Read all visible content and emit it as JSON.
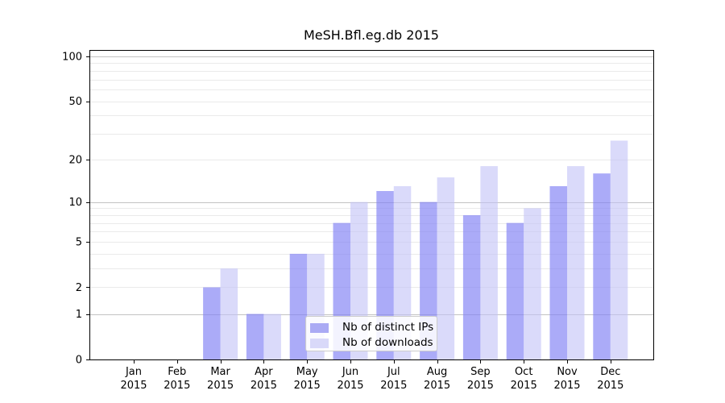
{
  "chart_data": {
    "type": "bar",
    "title": "MeSH.Bfl.eg.db 2015",
    "categories": [
      "Jan",
      "Feb",
      "Mar",
      "Apr",
      "May",
      "Jun",
      "Jul",
      "Aug",
      "Sep",
      "Oct",
      "Nov",
      "Dec"
    ],
    "year": "2015",
    "series": [
      {
        "name": "Nb of distinct IPs",
        "values": [
          0,
          0,
          2,
          1,
          4,
          7,
          12,
          10,
          8,
          7,
          13,
          16
        ]
      },
      {
        "name": "Nb of downloads",
        "values": [
          0,
          0,
          3,
          1,
          4,
          10,
          13,
          15,
          18,
          9,
          18,
          27
        ]
      }
    ],
    "yscale": "log1p",
    "ylim": [
      0,
      100
    ],
    "ytick_values": [
      0,
      1,
      2,
      5,
      10,
      20,
      50,
      100
    ],
    "ytick_labels": [
      "0",
      "1",
      "2",
      "5",
      "10",
      "20",
      "50",
      "100"
    ],
    "minor_gridlines": [
      2,
      3,
      4,
      5,
      6,
      7,
      8,
      9,
      20,
      30,
      40,
      50,
      60,
      70,
      80,
      90
    ],
    "major_gridlines": [
      1,
      10,
      100
    ],
    "grid": true,
    "xlabel": "",
    "ylabel": "",
    "legend_position": "bottom-center"
  },
  "legend": {
    "items": [
      {
        "label": "Nb of distinct IPs"
      },
      {
        "label": "Nb of downloads"
      }
    ]
  },
  "colors": {
    "ips_bar": "rgba(129,129,245,0.67)",
    "downloads_bar": "rgba(193,193,247,0.60)",
    "ips_swatch": "#aaaaf4",
    "downloads_swatch": "#d9d9f9",
    "grid_minor": "#eaeaea",
    "grid_major": "#c3c3c3",
    "axis": "#000000",
    "legend_border": "#cccccc",
    "background": "#ffffff"
  }
}
